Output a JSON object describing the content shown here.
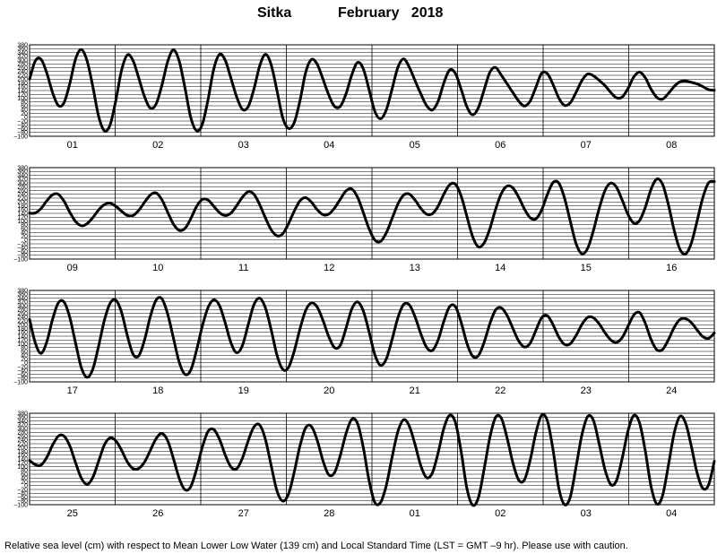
{
  "title": {
    "station": "Sitka",
    "month": "February   2018"
  },
  "footer": "Relative sea level (cm) with respect to Mean Lower Low Water (139 cm) and Local Standard Time (LST = GMT –9 hr). Please use with caution.",
  "chart_data": {
    "type": "line",
    "ylim": [
      -100,
      380
    ],
    "y_ticks": [
      380,
      360,
      340,
      320,
      300,
      280,
      260,
      240,
      220,
      200,
      180,
      160,
      140,
      120,
      100,
      80,
      60,
      40,
      20,
      0,
      -20,
      -40,
      -60,
      -80,
      -100
    ],
    "y_tick_labels": [
      "380",
      "360",
      "340",
      "320",
      "300",
      "280",
      "260",
      "240",
      "220",
      "200",
      "180",
      "160",
      "140",
      "120",
      "100",
      "80",
      "60",
      "40",
      "20",
      "0",
      "−20",
      "−40",
      "−60",
      "−80",
      "−100"
    ],
    "grid": true,
    "panels": [
      {
        "days": [
          "01",
          "02",
          "03",
          "04",
          "05",
          "06",
          "07",
          "08"
        ],
        "series": [
          {
            "values": [
              200,
              296,
              304,
              231,
              129,
              61,
              77,
              178,
              306,
              355,
              295,
              159,
              5,
              -71,
              -40,
              90,
              248,
              327,
              296,
              203,
              106,
              47,
              70,
              168,
              292,
              353,
              295,
              155,
              0,
              -70,
              -39,
              90,
              252,
              330,
              299,
              204,
              106,
              41,
              56,
              149,
              270,
              330,
              274,
              139,
              -3,
              -59,
              -28,
              88,
              237,
              303,
              277,
              199,
              116,
              57,
              57,
              123,
              223,
              287,
              254,
              145,
              31,
              -8,
              39,
              148,
              261,
              306,
              262,
              191,
              122,
              61,
              38,
              84,
              180,
              248,
              230,
              147,
              55,
              13,
              50,
              144,
              236,
              261,
              220,
              175,
              129,
              85,
              59,
              85,
              158,
              231,
              228,
              170,
              99,
              62,
              77,
              132,
              193,
              227,
              217,
              193,
              166,
              130,
              102,
              106,
              151,
              211,
              237,
              207,
              148,
              104,
              95,
              124,
              161,
              186,
              190,
              183,
              175,
              161,
              145,
              141
            ]
          }
        ]
      },
      {
        "days": [
          "09",
          "10",
          "11",
          "12",
          "13",
          "14",
          "15",
          "16"
        ],
        "series": [
          {
            "values": [
              141,
              142,
              166,
              206,
              238,
              240,
              203,
              145,
              97,
              75,
              86,
              118,
              158,
              186,
              193,
              177,
              151,
              129,
              129,
              157,
              199,
              237,
              247,
              211,
              146,
              84,
              51,
              61,
              111,
              175,
              213,
              210,
              178,
              144,
              129,
              142,
              181,
              225,
              254,
              240,
              185,
              115,
              53,
              22,
              33,
              86,
              152,
              206,
              222,
              198,
              159,
              133,
              136,
              168,
              214,
              258,
              268,
              225,
              144,
              59,
              0,
              -7,
              38,
              113,
              188,
              236,
              241,
              209,
              166,
              136,
              138,
              178,
              241,
              290,
              293,
              231,
              124,
              18,
              -36,
              -15,
              60,
              162,
              245,
              283,
              273,
              225,
              163,
              117,
              111,
              158,
              240,
              303,
              298,
              217,
              95,
              -21,
              -72,
              -43,
              51,
              166,
              260,
              299,
              277,
              209,
              134,
              89,
              102,
              171,
              266,
              320,
              293,
              188,
              54,
              -47,
              -73,
              -17,
              99,
              222,
              300,
              307
            ]
          }
        ]
      },
      {
        "days": [
          "17",
          "18",
          "19",
          "20",
          "21",
          "22",
          "23",
          "24"
        ],
        "series": [
          {
            "values": [
              228,
              104,
              50,
              111,
              229,
              315,
              319,
              237,
              103,
              -26,
              -76,
              -32,
              88,
              223,
              313,
              329,
              264,
              142,
              45,
              38,
              122,
              245,
              330,
              336,
              256,
              130,
              4,
              -60,
              -39,
              64,
              190,
              289,
              331,
              301,
              210,
              105,
              53,
              92,
              201,
              306,
              339,
              287,
              172,
              40,
              -34,
              -24,
              62,
              179,
              276,
              315,
              292,
              222,
              137,
              80,
              92,
              182,
              283,
              320,
              272,
              163,
              43,
              -13,
              21,
              122,
              236,
              306,
              304,
              241,
              152,
              81,
              65,
              120,
              218,
              295,
              295,
              213,
              103,
              35,
              38,
              108,
              206,
              278,
              288,
              248,
              180,
              115,
              83,
              103,
              171,
              237,
              247,
              198,
              134,
              96,
              101,
              145,
              202,
              239,
              237,
              204,
              158,
              120,
              107,
              133,
              192,
              251,
              264,
              208,
              123,
              69,
              70,
              120,
              184,
              227,
              232,
              211,
              173,
              138,
              128,
              157
            ]
          }
        ]
      },
      {
        "days": [
          "25",
          "26",
          "27",
          "28",
          "01",
          "02",
          "03",
          "04"
        ],
        "series": [
          {
            "values": [
              132,
              110,
              108,
              149,
              213,
              260,
              260,
              208,
              120,
              39,
              7,
              44,
              128,
              214,
              251,
              235,
              185,
              124,
              89,
              91,
              125,
              186,
              247,
              274,
              236,
              142,
              39,
              -21,
              -6,
              84,
              200,
              284,
              295,
              244,
              161,
              98,
              89,
              145,
              236,
              309,
              318,
              241,
              104,
              -28,
              -81,
              -44,
              72,
              210,
              305,
              310,
              237,
              130,
              57,
              69,
              159,
              274,
              348,
              326,
              200,
              27,
              -88,
              -88,
              2,
              149,
              283,
              346,
              312,
              215,
              104,
              42,
              67,
              172,
              301,
              369,
              332,
              180,
              -14,
              -102,
              -63,
              87,
              254,
              359,
              353,
              249,
              119,
              30,
              30,
              134,
              278,
              370,
              339,
              183,
              -17,
              -100,
              -56,
              104,
              268,
              363,
              342,
              218,
              84,
              6,
              27,
              145,
              287,
              368,
              330,
              183,
              -3,
              -96,
              -53,
              103,
              272,
              363,
              329,
              208,
              68,
              -14,
              4,
              128
            ]
          }
        ]
      }
    ]
  }
}
